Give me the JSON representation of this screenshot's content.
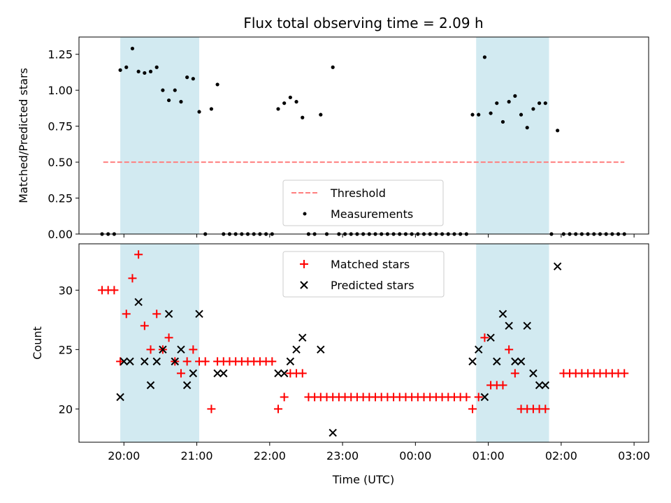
{
  "title": "Flux total observing time = 2.09 h",
  "xlabel": "Time (UTC)",
  "x_ticks": [
    {
      "t": 20.0,
      "label": "20:00"
    },
    {
      "t": 21.0,
      "label": "21:00"
    },
    {
      "t": 22.0,
      "label": "22:00"
    },
    {
      "t": 23.0,
      "label": "23:00"
    },
    {
      "t": 24.0,
      "label": "00:00"
    },
    {
      "t": 25.0,
      "label": "01:00"
    },
    {
      "t": 26.0,
      "label": "02:00"
    },
    {
      "t": 27.0,
      "label": "03:00"
    }
  ],
  "colors": {
    "shade": "#add8e6",
    "threshold": "#ff7f7f",
    "measurements": "#000000",
    "matched": "#ff0000",
    "predicted": "#000000"
  },
  "chart_data": [
    {
      "type": "scatter",
      "ylabel": "Matched/Predicted stars",
      "xlim": [
        "19:23",
        "03:12"
      ],
      "ylim": [
        0,
        1.37
      ],
      "y_ticks": [
        "0.00",
        "0.25",
        "0.50",
        "0.75",
        "1.00",
        "1.25"
      ],
      "legend_position": "lower-center",
      "shaded_intervals": [
        [
          "19:57",
          "21:02"
        ],
        [
          "00:50",
          "01:50"
        ]
      ],
      "threshold": {
        "name": "Threshold",
        "y": 0.5,
        "x_range": [
          "19:43",
          "02:52"
        ]
      },
      "series": [
        {
          "name": "Measurements",
          "marker": "dot",
          "points": [
            [
              "19:42",
              0
            ],
            [
              "19:47",
              0
            ],
            [
              "19:52",
              0
            ],
            [
              "19:57",
              1.14
            ],
            [
              "20:02",
              1.16
            ],
            [
              "20:07",
              1.29
            ],
            [
              "20:12",
              1.13
            ],
            [
              "20:17",
              1.12
            ],
            [
              "20:22",
              1.13
            ],
            [
              "20:27",
              1.16
            ],
            [
              "20:32",
              1.0
            ],
            [
              "20:37",
              0.93
            ],
            [
              "20:42",
              1.0
            ],
            [
              "20:47",
              0.92
            ],
            [
              "20:52",
              1.09
            ],
            [
              "20:57",
              1.08
            ],
            [
              "21:02",
              0.85
            ],
            [
              "21:07",
              0
            ],
            [
              "21:12",
              0.87
            ],
            [
              "21:17",
              1.04
            ],
            [
              "21:22",
              0
            ],
            [
              "21:27",
              0
            ],
            [
              "21:32",
              0
            ],
            [
              "21:37",
              0
            ],
            [
              "21:42",
              0
            ],
            [
              "21:47",
              0
            ],
            [
              "21:52",
              0
            ],
            [
              "21:57",
              0
            ],
            [
              "22:02",
              0
            ],
            [
              "22:07",
              0.87
            ],
            [
              "22:12",
              0.91
            ],
            [
              "22:17",
              0.95
            ],
            [
              "22:22",
              0.92
            ],
            [
              "22:27",
              0.81
            ],
            [
              "22:32",
              0
            ],
            [
              "22:37",
              0
            ],
            [
              "22:42",
              0.83
            ],
            [
              "22:47",
              0
            ],
            [
              "22:52",
              1.16
            ],
            [
              "22:57",
              0
            ],
            [
              "23:02",
              0
            ],
            [
              "23:07",
              0
            ],
            [
              "23:12",
              0
            ],
            [
              "23:17",
              0
            ],
            [
              "23:22",
              0
            ],
            [
              "23:27",
              0
            ],
            [
              "23:32",
              0
            ],
            [
              "23:37",
              0
            ],
            [
              "23:42",
              0
            ],
            [
              "23:47",
              0
            ],
            [
              "23:52",
              0
            ],
            [
              "23:57",
              0
            ],
            [
              "00:02",
              0
            ],
            [
              "00:07",
              0
            ],
            [
              "00:12",
              0
            ],
            [
              "00:17",
              0
            ],
            [
              "00:22",
              0
            ],
            [
              "00:27",
              0
            ],
            [
              "00:32",
              0
            ],
            [
              "00:37",
              0
            ],
            [
              "00:42",
              0
            ],
            [
              "00:47",
              0.83
            ],
            [
              "00:52",
              0.83
            ],
            [
              "00:57",
              1.23
            ],
            [
              "01:02",
              0.84
            ],
            [
              "01:07",
              0.91
            ],
            [
              "01:12",
              0.78
            ],
            [
              "01:17",
              0.92
            ],
            [
              "01:22",
              0.96
            ],
            [
              "01:27",
              0.83
            ],
            [
              "01:32",
              0.74
            ],
            [
              "01:37",
              0.87
            ],
            [
              "01:42",
              0.91
            ],
            [
              "01:47",
              0.91
            ],
            [
              "01:52",
              0
            ],
            [
              "01:57",
              0.72
            ],
            [
              "02:02",
              0
            ],
            [
              "02:07",
              0
            ],
            [
              "02:12",
              0
            ],
            [
              "02:17",
              0
            ],
            [
              "02:22",
              0
            ],
            [
              "02:27",
              0
            ],
            [
              "02:32",
              0
            ],
            [
              "02:37",
              0
            ],
            [
              "02:42",
              0
            ],
            [
              "02:47",
              0
            ],
            [
              "02:52",
              0
            ]
          ]
        }
      ]
    },
    {
      "type": "scatter",
      "ylabel": "Count",
      "xlim": [
        "19:23",
        "03:12"
      ],
      "ylim": [
        17.2,
        33.9
      ],
      "y_ticks": [
        "20",
        "25",
        "30"
      ],
      "legend_position": "upper-center",
      "shaded_intervals": [
        [
          "19:57",
          "21:02"
        ],
        [
          "00:50",
          "01:50"
        ]
      ],
      "series": [
        {
          "name": "Matched stars",
          "marker": "plus",
          "points": [
            [
              "19:42",
              30
            ],
            [
              "19:47",
              30
            ],
            [
              "19:52",
              30
            ],
            [
              "19:57",
              24
            ],
            [
              "20:02",
              28
            ],
            [
              "20:07",
              31
            ],
            [
              "20:12",
              33
            ],
            [
              "20:17",
              27
            ],
            [
              "20:22",
              25
            ],
            [
              "20:27",
              28
            ],
            [
              "20:32",
              25
            ],
            [
              "20:37",
              26
            ],
            [
              "20:42",
              24
            ],
            [
              "20:47",
              23
            ],
            [
              "20:52",
              24
            ],
            [
              "20:57",
              25
            ],
            [
              "21:02",
              24
            ],
            [
              "21:07",
              24
            ],
            [
              "21:12",
              20
            ],
            [
              "21:17",
              24
            ],
            [
              "21:22",
              24
            ],
            [
              "21:27",
              24
            ],
            [
              "21:32",
              24
            ],
            [
              "21:37",
              24
            ],
            [
              "21:42",
              24
            ],
            [
              "21:47",
              24
            ],
            [
              "21:52",
              24
            ],
            [
              "21:57",
              24
            ],
            [
              "22:02",
              24
            ],
            [
              "22:07",
              20
            ],
            [
              "22:12",
              21
            ],
            [
              "22:17",
              23
            ],
            [
              "22:22",
              23
            ],
            [
              "22:27",
              23
            ],
            [
              "22:32",
              21
            ],
            [
              "22:37",
              21
            ],
            [
              "22:42",
              21
            ],
            [
              "22:47",
              21
            ],
            [
              "22:52",
              21
            ],
            [
              "22:57",
              21
            ],
            [
              "23:02",
              21
            ],
            [
              "23:07",
              21
            ],
            [
              "23:12",
              21
            ],
            [
              "23:17",
              21
            ],
            [
              "23:22",
              21
            ],
            [
              "23:27",
              21
            ],
            [
              "23:32",
              21
            ],
            [
              "23:37",
              21
            ],
            [
              "23:42",
              21
            ],
            [
              "23:47",
              21
            ],
            [
              "23:52",
              21
            ],
            [
              "23:57",
              21
            ],
            [
              "00:02",
              21
            ],
            [
              "00:07",
              21
            ],
            [
              "00:12",
              21
            ],
            [
              "00:17",
              21
            ],
            [
              "00:22",
              21
            ],
            [
              "00:27",
              21
            ],
            [
              "00:32",
              21
            ],
            [
              "00:37",
              21
            ],
            [
              "00:42",
              21
            ],
            [
              "00:47",
              20
            ],
            [
              "00:52",
              21
            ],
            [
              "00:57",
              26
            ],
            [
              "01:02",
              22
            ],
            [
              "01:07",
              22
            ],
            [
              "01:12",
              22
            ],
            [
              "01:17",
              25
            ],
            [
              "01:22",
              23
            ],
            [
              "01:27",
              20
            ],
            [
              "01:32",
              20
            ],
            [
              "01:37",
              20
            ],
            [
              "01:42",
              20
            ],
            [
              "01:47",
              20
            ],
            [
              "02:02",
              23
            ],
            [
              "02:07",
              23
            ],
            [
              "02:12",
              23
            ],
            [
              "02:17",
              23
            ],
            [
              "02:22",
              23
            ],
            [
              "02:27",
              23
            ],
            [
              "02:32",
              23
            ],
            [
              "02:37",
              23
            ],
            [
              "02:42",
              23
            ],
            [
              "02:47",
              23
            ],
            [
              "02:52",
              23
            ]
          ]
        },
        {
          "name": "Predicted stars",
          "marker": "x",
          "points": [
            [
              "19:57",
              21
            ],
            [
              "20:00",
              24
            ],
            [
              "20:05",
              24
            ],
            [
              "20:12",
              29
            ],
            [
              "20:17",
              24
            ],
            [
              "20:22",
              22
            ],
            [
              "20:27",
              24
            ],
            [
              "20:32",
              25
            ],
            [
              "20:37",
              28
            ],
            [
              "20:42",
              24
            ],
            [
              "20:47",
              25
            ],
            [
              "20:52",
              22
            ],
            [
              "20:57",
              23
            ],
            [
              "21:02",
              28
            ],
            [
              "21:17",
              23
            ],
            [
              "21:22",
              23
            ],
            [
              "22:07",
              23
            ],
            [
              "22:12",
              23
            ],
            [
              "22:17",
              24
            ],
            [
              "22:22",
              25
            ],
            [
              "22:27",
              26
            ],
            [
              "22:42",
              25
            ],
            [
              "22:52",
              18
            ],
            [
              "00:47",
              24
            ],
            [
              "00:52",
              25
            ],
            [
              "00:57",
              21
            ],
            [
              "01:02",
              26
            ],
            [
              "01:07",
              24
            ],
            [
              "01:12",
              28
            ],
            [
              "01:17",
              27
            ],
            [
              "01:22",
              24
            ],
            [
              "01:27",
              24
            ],
            [
              "01:32",
              27
            ],
            [
              "01:37",
              23
            ],
            [
              "01:42",
              22
            ],
            [
              "01:47",
              22
            ],
            [
              "01:57",
              32
            ]
          ]
        }
      ]
    }
  ]
}
